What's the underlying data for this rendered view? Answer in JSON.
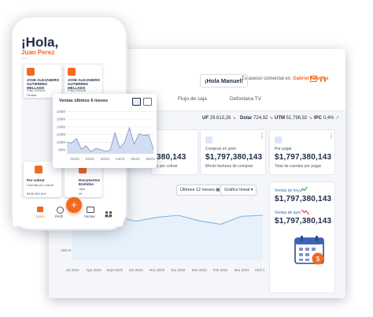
{
  "dashboard": {
    "greeting": "¡Hola Manuel!",
    "advisor_prefix": "Tu asesor comercial es:",
    "advisor_name": "Gabriel Fuentes",
    "tabs": [
      "Flujo de caja",
      "Defontana TV"
    ],
    "indicators": [
      {
        "name": "UF",
        "value": "29.613,26",
        "trend": "down"
      },
      {
        "name": "Dolar",
        "value": "724,92",
        "trend": "down"
      },
      {
        "name": "UTM",
        "value": "51,798,92",
        "trend": "down"
      },
      {
        "name": "IPC",
        "value": "0,4%",
        "trend": "up"
      }
    ],
    "cards": [
      {
        "label": "Compras en junio",
        "amount": "$1,797,380,143",
        "sub": "Monto facturas de compras"
      },
      {
        "label": "Por pagar",
        "amount": "$1,797,380,143",
        "sub": "Total de cuentas por pagar"
      }
    ],
    "partial_card": {
      "amount": "380,143",
      "sub": "s por cobrar"
    },
    "period_select": "Últimos 12 meses",
    "chart_type_select": "Gráfico lineal",
    "sales_today_label": "Ventas de hoy",
    "sales_today_amount": "$1,797,380,143",
    "sales_yesterday_label": "Ventas de ayer",
    "sales_yesterday_amount": "$1,797,380,143",
    "trend_colors": {
      "up": "#3aa56b",
      "down": "#e0483a"
    },
    "accent": "#f06a22",
    "navy": "#1f2a44"
  },
  "phone": {
    "hola": "¡Hola,",
    "name": "Juan Perez",
    "cards": [
      {
        "title": "JOSE ALEJANDRO GUTIERREZ MELLADO",
        "sub1": "Folio 139118",
        "sub2": "Ventas"
      },
      {
        "title": "JOSE ALEJANDRO GUTIERREZ MELLADO",
        "sub1": "Folio 139118",
        "sub2": ""
      }
    ],
    "bottom_cards": [
      {
        "title": "Por cobrar",
        "sub1": "Cuentas por cobrar",
        "sub2": "$198.381.819"
      },
      {
        "title": "Documentos Emitidos",
        "sub1": "Julio",
        "sub2": "26"
      }
    ],
    "nav": [
      "Inicio",
      "Perfil",
      "Ventas",
      "Más"
    ],
    "fab": "+"
  },
  "chart_data": [
    {
      "type": "line",
      "title": "Ventas últimos 6 meses",
      "categories": [
        "01/23",
        "02/23",
        "03/23",
        "04/23",
        "05/23",
        "06/23"
      ],
      "x": [
        0,
        1,
        2,
        3,
        4,
        5,
        6,
        7,
        8,
        9,
        10,
        11,
        12,
        13,
        14,
        15,
        16,
        17,
        18
      ],
      "values": [
        100,
        98,
        110,
        82,
        91,
        75,
        84,
        81,
        76,
        80,
        125,
        85,
        100,
        138,
        95,
        122,
        118,
        120,
        82
      ],
      "yticks": [
        "80M",
        "100M",
        "120M",
        "140M",
        "160M",
        "180M"
      ],
      "ylim": [
        70,
        185
      ],
      "grid": true,
      "fill_color": "#cbd7ee",
      "line_color": "#8a99c8"
    },
    {
      "type": "area",
      "title": "",
      "categories": [
        "Jul 2020",
        "Ago 2020",
        "Sept 2020",
        "Oct 2020",
        "Nov 2020",
        "Dic 2020",
        "Ene 2021",
        "Feb 2021",
        "Mar 2021",
        "Abril 2021"
      ],
      "values": [
        248,
        262,
        268,
        258,
        266,
        270,
        259,
        252,
        268,
        270
      ],
      "yticks": [
        "200 M"
      ],
      "ylim": [
        180,
        300
      ],
      "grid": false,
      "line_color": "#7fb6e6",
      "fill_color": "#e7f1fb"
    }
  ]
}
